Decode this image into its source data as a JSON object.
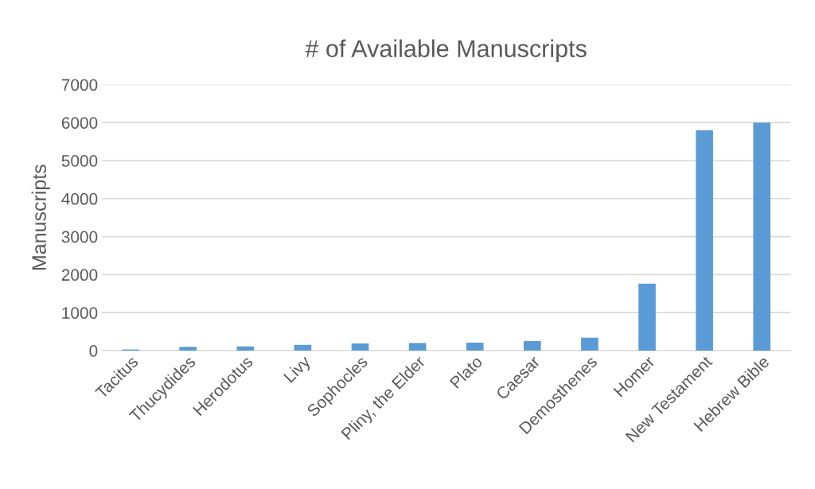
{
  "chart_data": {
    "type": "bar",
    "title": "# of Available Manuscripts",
    "ylabel": "Manuscripts",
    "categories": [
      "Tacitus",
      "Thucydides",
      "Herodotus",
      "Livy",
      "Sophocles",
      "Pliny, the Elder",
      "Plato",
      "Caesar",
      "Demosthenes",
      "Homer",
      "New Testament",
      "Hebrew Bible"
    ],
    "values": [
      30,
      100,
      110,
      150,
      190,
      200,
      210,
      250,
      340,
      1760,
      5800,
      6000
    ],
    "color": "#5b9bd5",
    "ylim": [
      0,
      7000
    ],
    "yticks": [
      0,
      1000,
      2000,
      3000,
      4000,
      5000,
      6000,
      7000
    ],
    "grid": "y",
    "legend": false
  }
}
